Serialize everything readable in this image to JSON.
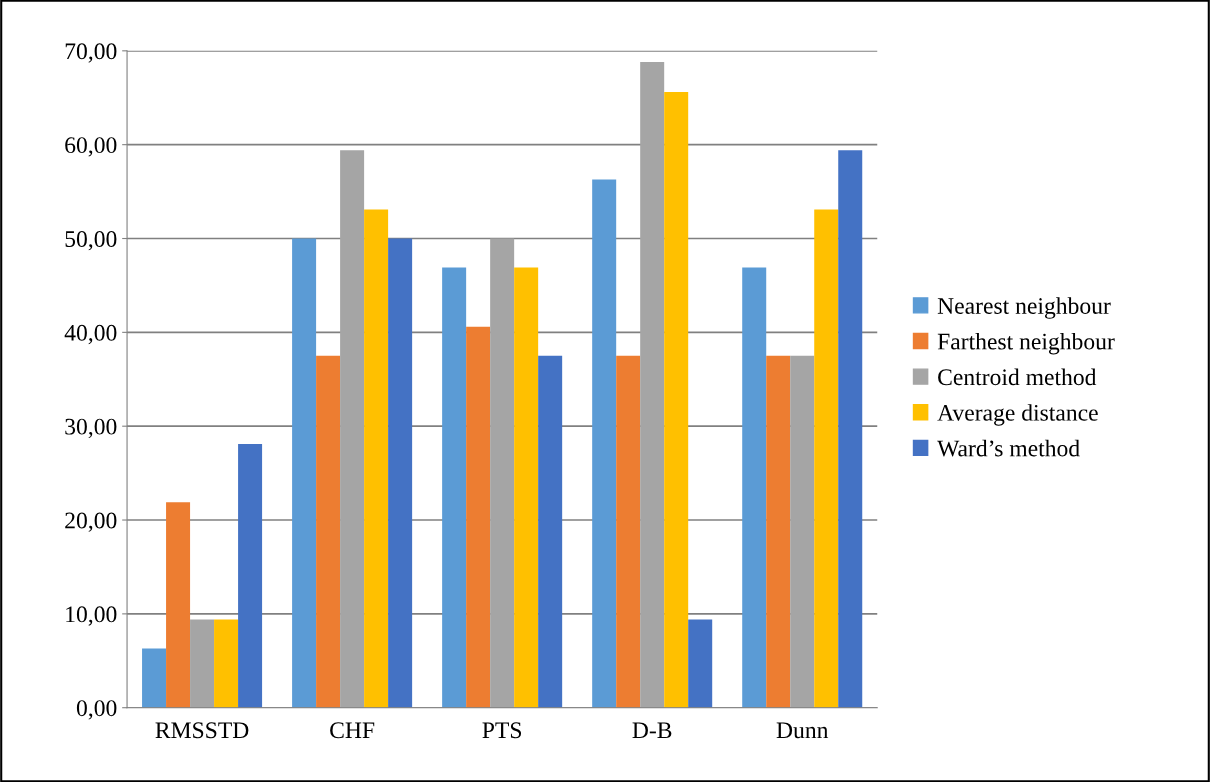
{
  "chart_data": {
    "type": "bar",
    "categories": [
      "RMSSTD",
      "CHF",
      "PTS",
      "D-B",
      "Dunn"
    ],
    "series": [
      {
        "name": "Nearest neighbour",
        "color": "#5b9bd5",
        "values": [
          6.3,
          50.0,
          46.9,
          56.3,
          46.9
        ]
      },
      {
        "name": "Farthest neighbour",
        "color": "#ed7d31",
        "values": [
          21.9,
          37.5,
          40.6,
          37.5,
          37.5
        ]
      },
      {
        "name": "Centroid method",
        "color": "#a5a5a5",
        "values": [
          9.4,
          59.4,
          50.0,
          68.8,
          37.5
        ]
      },
      {
        "name": "Average distance",
        "color": "#ffc000",
        "values": [
          9.4,
          53.1,
          46.9,
          65.6,
          53.1
        ]
      },
      {
        "name": "Ward’s method",
        "color": "#4472c4",
        "values": [
          28.1,
          50.0,
          37.5,
          9.4,
          59.4
        ]
      }
    ],
    "ylim": [
      0,
      70
    ],
    "yticks": [
      {
        "value": 0,
        "label": "0,00"
      },
      {
        "value": 10,
        "label": "10,00"
      },
      {
        "value": 20,
        "label": "20,00"
      },
      {
        "value": 30,
        "label": "30,00"
      },
      {
        "value": 40,
        "label": "40,00"
      },
      {
        "value": 50,
        "label": "50,00"
      },
      {
        "value": 60,
        "label": "60,00"
      },
      {
        "value": 70,
        "label": "70,00"
      }
    ],
    "grid": "y",
    "legend": "right"
  }
}
